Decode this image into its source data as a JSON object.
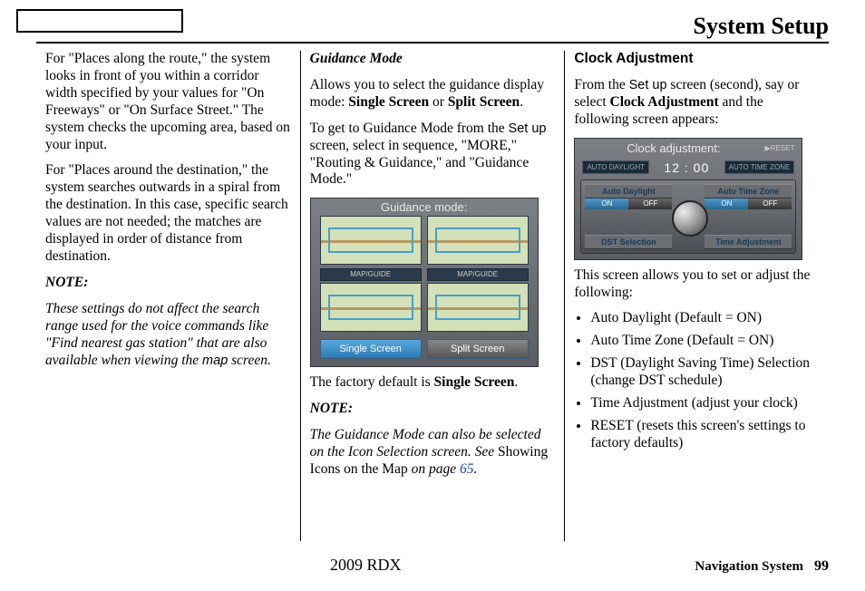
{
  "pageTitle": "System Setup",
  "col1": {
    "p1": "For \"Places along the route,\" the system looks in front of you within a corridor width specified by your values for \"On Freeways\" or \"On Surface Street.\" The system checks the upcoming area, based on your input.",
    "p2": "For \"Places around the destination,\" the system searches outwards in a spiral from the destination. In this case, specific search values are not needed; the matches are displayed in order of distance from destination.",
    "noteLabel": "NOTE:",
    "note_a": "These settings do not affect the search range used for the voice commands like \"Find nearest gas station\" that are also available when viewing the ",
    "note_map": "map",
    "note_b": " screen."
  },
  "col2": {
    "h": "Guidance Mode",
    "p1a": "Allows you to select the guidance display mode: ",
    "p1b1": "Single Screen",
    "p1c": " or ",
    "p1b2": "Split Screen",
    "p1d": ".",
    "p2a": "To get to Guidance Mode from the ",
    "p2setup": "Set up",
    "p2b": " screen, select in sequence, \"MORE,\" \"Routing & Guidance,\" and \"Guidance Mode.\"",
    "screen": {
      "title": "Guidance mode:",
      "label": "MAP/GUIDE",
      "btn1": "Single Screen",
      "btn2": "Split Screen"
    },
    "p3a": "The factory default is ",
    "p3b": "Single Screen",
    "p3c": ".",
    "noteLabel": "NOTE:",
    "n_a": "The Guidance Mode can also be selected on the Icon Selection screen. See ",
    "n_mid": "Showing Icons on the Map",
    "n_b": " on page ",
    "n_pg": "65",
    "n_c": "."
  },
  "col3": {
    "h": "Clock Adjustment",
    "p1a": "From the ",
    "p1setup": "Set up",
    "p1b": " screen (second), say or select ",
    "p1bold": "Clock Adjustment",
    "p1c": " and the following screen appears:",
    "screen": {
      "title": "Clock adjustment:",
      "reset": "▶RESET",
      "pillL": "AUTO DAYLIGHT",
      "pillR": "AUTO TIME ZONE",
      "time": "12 : 00",
      "g1": "Auto Daylight",
      "g2": "Auto Time Zone",
      "g3": "DST Selection",
      "g4": "Time Adjustment",
      "on": "ON",
      "off": "OFF"
    },
    "p2": "This screen allows you to set or adjust the following:",
    "b1": "Auto Daylight (Default = ON)",
    "b2": "Auto Time Zone (Default = ON)",
    "b3": "DST (Daylight Saving Time) Selection (change DST schedule)",
    "b4": "Time Adjustment (adjust your clock)",
    "b5": "RESET (resets this screen's settings to factory defaults)"
  },
  "footer": {
    "center": "2009  RDX",
    "label": "Navigation System",
    "page": "99"
  }
}
